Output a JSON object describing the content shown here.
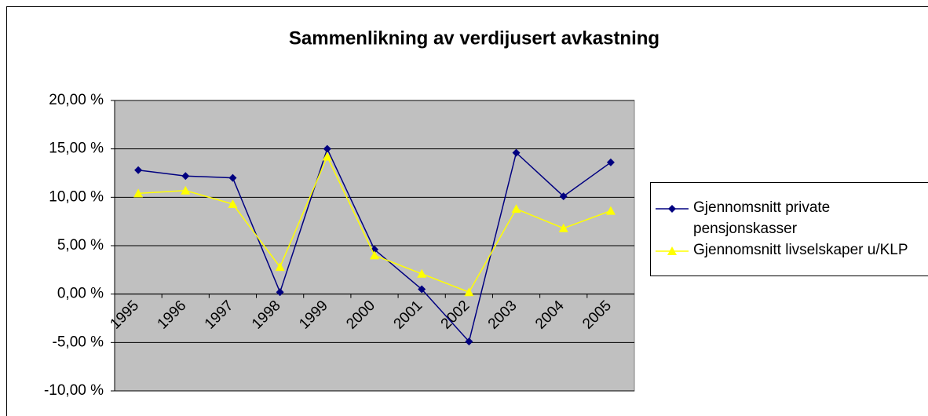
{
  "chart_data": {
    "type": "line",
    "title": "Sammenlikning av verdijusert avkastning",
    "categories": [
      "1995",
      "1996",
      "1997",
      "1998",
      "1999",
      "2000",
      "2001",
      "2002",
      "2003",
      "2004",
      "2005"
    ],
    "series": [
      {
        "name": "Gjennomsnitt private pensjonskasser",
        "color": "#000080",
        "marker": "diamond",
        "values": [
          12.8,
          12.2,
          12.0,
          0.2,
          15.0,
          4.6,
          0.5,
          -4.9,
          14.6,
          10.1,
          13.6
        ]
      },
      {
        "name": "Gjennomsnitt livselskaper u/KLP",
        "color": "#ffff00",
        "marker": "triangle",
        "values": [
          10.4,
          10.7,
          9.3,
          2.8,
          14.2,
          4.0,
          2.1,
          0.2,
          8.8,
          6.8,
          8.6
        ]
      }
    ],
    "ylim": [
      -10,
      20
    ],
    "yticks": [
      {
        "value": -10,
        "label": "-10,00 %"
      },
      {
        "value": -5,
        "label": "-5,00 %"
      },
      {
        "value": 0,
        "label": "0,00 %"
      },
      {
        "value": 5,
        "label": "5,00 %"
      },
      {
        "value": 10,
        "label": "10,00 %"
      },
      {
        "value": 15,
        "label": "15,00 %"
      },
      {
        "value": 20,
        "label": "20,00 %"
      }
    ],
    "grid": true,
    "legend": "right",
    "plot_background": "#c0c0c0"
  }
}
